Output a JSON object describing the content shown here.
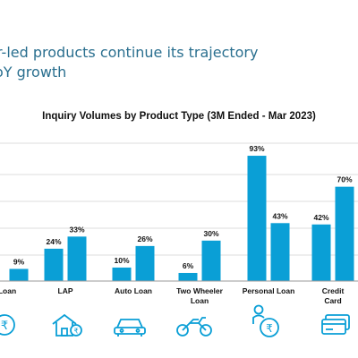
{
  "headline": {
    "line1": "r-led products continue its trajectory",
    "line2": "oY growth"
  },
  "chart_data": {
    "type": "bar",
    "title": "Inquiry Volumes by Product Type (3M Ended - Mar 2023)",
    "categories": [
      "Loan",
      "LAP",
      "Auto Loan",
      "Two Wheeler Loan",
      "Personal Loan",
      "Credit Card"
    ],
    "category_lines": [
      [
        "Loan"
      ],
      [
        "LAP"
      ],
      [
        "Auto Loan"
      ],
      [
        "Two Wheeler",
        "Loan"
      ],
      [
        "Personal Loan"
      ],
      [
        "Credit",
        "Card"
      ]
    ],
    "series": [
      {
        "values": [
          null,
          24,
          10,
          6,
          93,
          42
        ],
        "labels": [
          "",
          "24%",
          "10%",
          "6%",
          "93%",
          "42%"
        ]
      },
      {
        "values": [
          9,
          33,
          26,
          30,
          43,
          70
        ],
        "labels": [
          "9%",
          "33%",
          "26%",
          "30%",
          "43%",
          "70%"
        ]
      }
    ],
    "colors": {
      "bar": "#0a9fd6",
      "grid": "#d0d0d0",
      "axis": "#9a9a9a"
    },
    "grid": true,
    "ylim": [
      0,
      100
    ]
  },
  "icons": [
    "rupee-coin-icon",
    "house-rupee-icon",
    "car-icon",
    "motorcycle-icon",
    "person-rupee-icon",
    "credit-card-icon"
  ]
}
